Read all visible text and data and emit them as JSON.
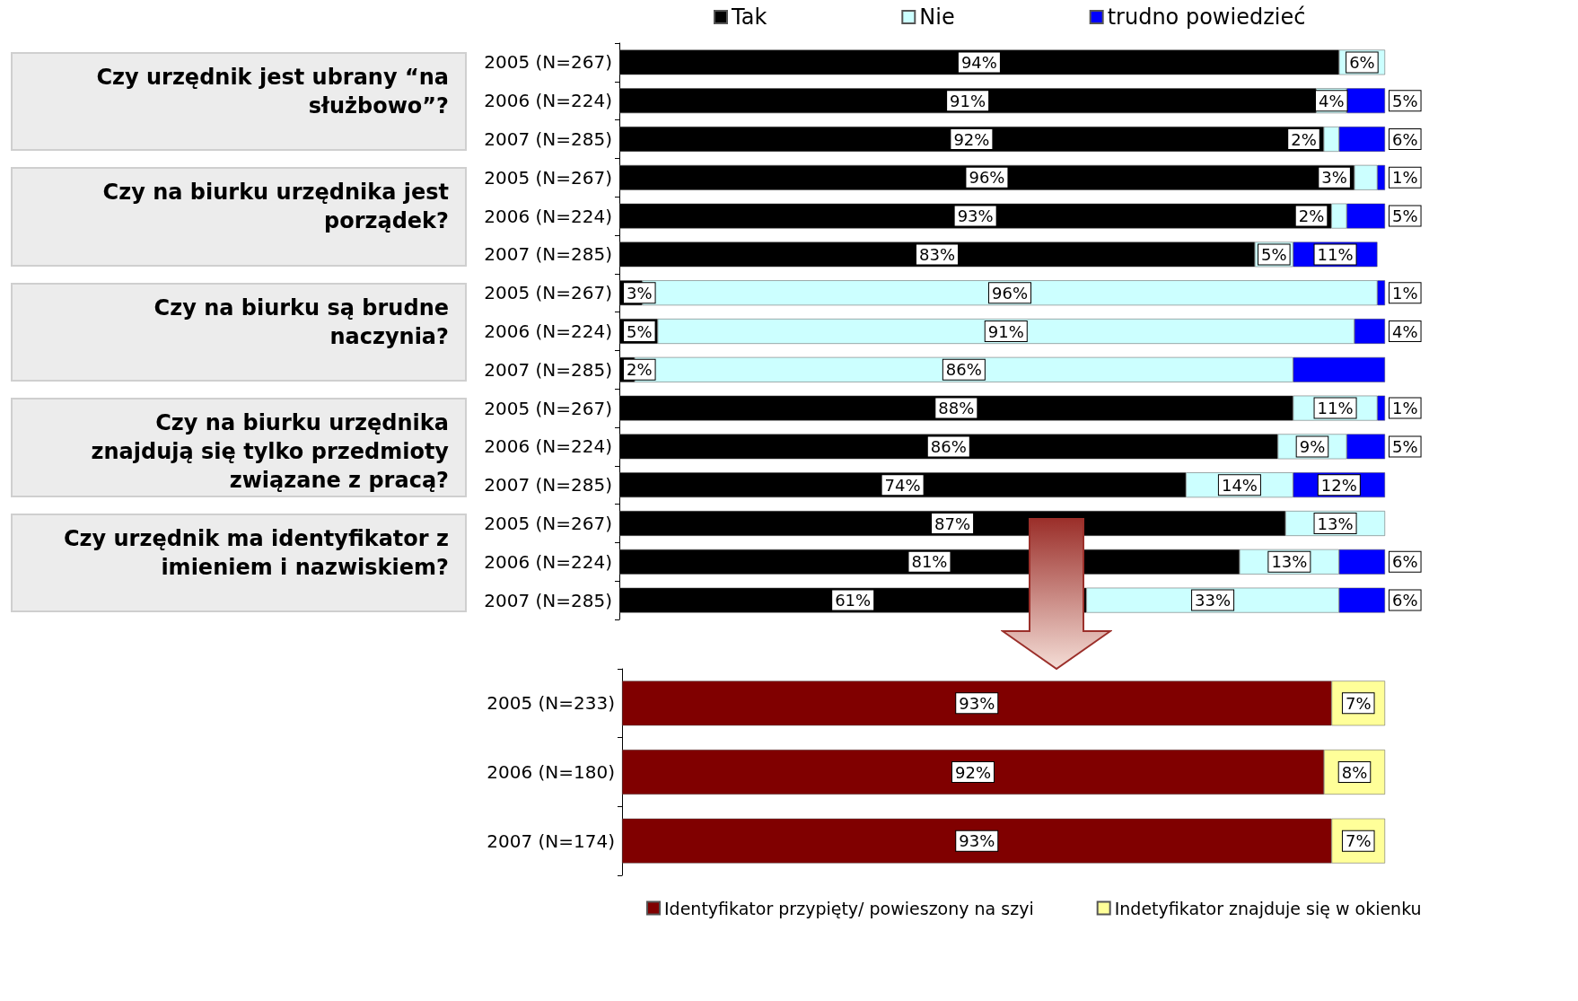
{
  "chart_data": [
    {
      "type": "bar",
      "orientation": "horizontal",
      "stacked": true,
      "legend": "top",
      "categories": [
        "2005 (N=267)",
        "2006 (N=224)",
        "2007 (N=285)",
        "2005 (N=267)",
        "2006 (N=224)",
        "2007 (N=285)",
        "2005 (N=267)",
        "2006 (N=224)",
        "2007 (N=285)",
        "2005 (N=267)",
        "2006 (N=224)",
        "2007 (N=285)",
        "2005 (N=267)",
        "2006 (N=224)",
        "2007 (N=285)"
      ],
      "series": [
        {
          "name": "Tak",
          "color": "#000000",
          "values": [
            94,
            91,
            92,
            96,
            93,
            83,
            3,
            5,
            2,
            88,
            86,
            74,
            87,
            81,
            61
          ],
          "value_labels": [
            "94%",
            "91%",
            "92%",
            "96%",
            "93%",
            "83%",
            "3%",
            "5%",
            "2%",
            "88%",
            "86%",
            "74%",
            "87%",
            "81%",
            "61%"
          ]
        },
        {
          "name": "Nie",
          "color": "#ccffff",
          "values": [
            6,
            4,
            2,
            3,
            2,
            5,
            96,
            91,
            86,
            11,
            9,
            14,
            13,
            13,
            33
          ],
          "value_labels": [
            "6%",
            "4%",
            "2%",
            "3%",
            "2%",
            "5%",
            "96%",
            "91%",
            "86%",
            "11%",
            "9%",
            "14%",
            "13%",
            "13%",
            "33%"
          ]
        },
        {
          "name": "trudno powiedzieć",
          "color": "#0000ff",
          "values": [
            null,
            5,
            6,
            1,
            5,
            11,
            1,
            4,
            12,
            1,
            5,
            12,
            null,
            6,
            6
          ],
          "value_labels": [
            null,
            "5%",
            "6%",
            "1%",
            "5%",
            "11%",
            "1%",
            "4%",
            null,
            "1%",
            "5%",
            "12%",
            null,
            "6%",
            "6%"
          ]
        }
      ],
      "annotations": [
        "Czy urzędnik jest ubrany “na służbowo”?",
        "Czy na biurku urzędnika jest porządek?",
        "Czy na biurku są brudne naczynia?",
        "Czy na biurku urzędnika znajdują się tylko przedmioty związane z pracą?",
        "Czy urzędnik ma identyfikator z imieniem  i nazwiskiem?"
      ]
    },
    {
      "type": "bar",
      "orientation": "horizontal",
      "stacked": true,
      "legend": "bottom",
      "categories": [
        "2005 (N=233)",
        "2006 (N=180)",
        "2007 (N=174)"
      ],
      "series": [
        {
          "name": "Identyfikator przypięty/ powieszony na szyi",
          "color": "#800000",
          "values": [
            93,
            92,
            93
          ],
          "value_labels": [
            "93%",
            "92%",
            "93%"
          ]
        },
        {
          "name": "Indetyfikator znajduje się w okienku",
          "color": "#ffff99",
          "values": [
            7,
            8,
            7
          ],
          "value_labels": [
            "7%",
            "8%",
            "7%"
          ]
        }
      ]
    }
  ]
}
